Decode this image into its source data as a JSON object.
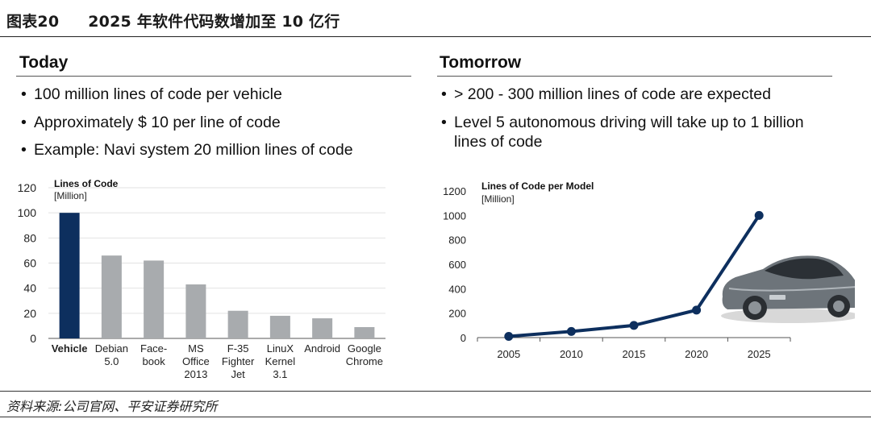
{
  "header": {
    "figure_label": "图表20",
    "title": "2025 年软件代码数增加至 10 亿行"
  },
  "left_panel": {
    "heading": "Today",
    "bullets": [
      "100 million lines of code per vehicle",
      "Approximately $ 10 per line of code",
      "Example: Navi system 20 million lines of code"
    ]
  },
  "right_panel": {
    "heading": "Tomorrow",
    "bullets": [
      "> 200 - 300 million lines of code are expected",
      "Level 5 autonomous driving will take up to 1 billion lines of code"
    ]
  },
  "bullet_glyph": "•",
  "source": "资料来源:公司官网、平安证券研究所",
  "colors": {
    "highlight_bar": "#0d2f5e",
    "other_bars": "#a8abae",
    "line": "#0d2f5e",
    "grid": "#e2e2e2"
  },
  "chart_data": [
    {
      "type": "bar",
      "title": "Lines of Code",
      "unit": "[Million]",
      "categories": [
        [
          "Vehicle"
        ],
        [
          "Debian",
          "5.0"
        ],
        [
          "Face-",
          "book"
        ],
        [
          "MS",
          "Office",
          "2013"
        ],
        [
          "F-35",
          "Fighter",
          "Jet"
        ],
        [
          "LinuX",
          "Kernel",
          "3.1"
        ],
        [
          "Android"
        ],
        [
          "Google",
          "Chrome"
        ]
      ],
      "values": [
        100,
        66,
        62,
        43,
        22,
        18,
        16,
        9
      ],
      "highlight_index": 0,
      "ylim": [
        0,
        120
      ],
      "yticks": [
        "0",
        "20",
        "40",
        "60",
        "80",
        "100",
        "120"
      ],
      "grid": true
    },
    {
      "type": "line",
      "title": "Lines of Code per Model",
      "unit": "[Million]",
      "x": [
        "2005",
        "2010",
        "2015",
        "2020",
        "2025"
      ],
      "values": [
        10,
        50,
        100,
        225,
        1000
      ],
      "ylim": [
        0,
        1200
      ],
      "yticks": [
        "0",
        "200",
        "400",
        "600",
        "800",
        "1000",
        "1200"
      ],
      "grid": false,
      "image": "concept-car-image"
    }
  ]
}
